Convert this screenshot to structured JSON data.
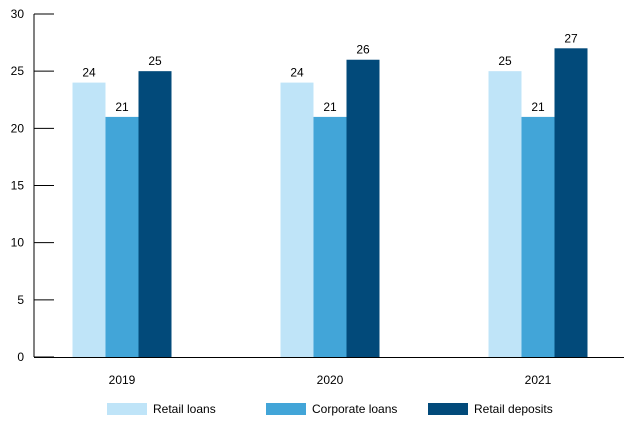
{
  "chart_data": {
    "type": "bar",
    "categories": [
      "2019",
      "2020",
      "2021"
    ],
    "series": [
      {
        "name": "Retail loans",
        "color": "#bfe4f8",
        "values": [
          24,
          24,
          25
        ]
      },
      {
        "name": "Corporate loans",
        "color": "#42a5d8",
        "values": [
          21,
          21,
          21
        ]
      },
      {
        "name": "Retail deposits",
        "color": "#024a7a",
        "values": [
          25,
          26,
          27
        ]
      }
    ],
    "y_ticks": [
      "0",
      "5",
      "10",
      "15",
      "20",
      "25",
      "30"
    ],
    "ylim": [
      0,
      30
    ],
    "grid": false,
    "legend_position": "bottom"
  }
}
